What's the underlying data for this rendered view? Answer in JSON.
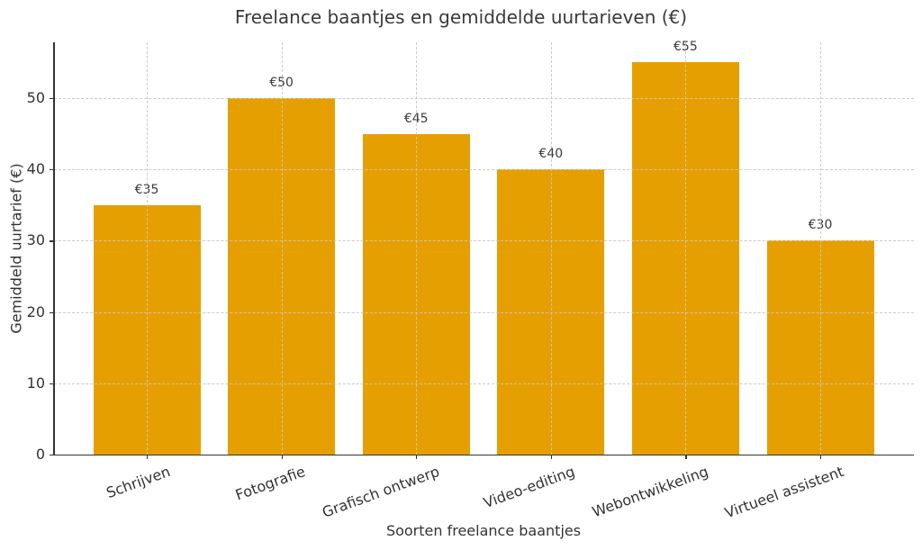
{
  "chart_data": {
    "type": "bar",
    "title": "Freelance baantjes en gemiddelde uurtarieven (€)",
    "xlabel": "Soorten freelance baantjes",
    "ylabel": "Gemiddeld uurtarief (€)",
    "categories": [
      "Schrijven",
      "Fotografie",
      "Grafisch ontwerp",
      "Video-editing",
      "Webontwikkeling",
      "Virtueel assistent"
    ],
    "values": [
      35,
      50,
      45,
      40,
      55,
      30
    ],
    "value_labels": [
      "€35",
      "€50",
      "€45",
      "€40",
      "€55",
      "€30"
    ],
    "ylim": [
      0,
      57.75
    ],
    "yticks": [
      0,
      10,
      20,
      30,
      40,
      50
    ],
    "grid": true,
    "grid_style": "dashed",
    "legend": null,
    "xtick_rotation": 20,
    "bar_color": "#E69F00"
  }
}
